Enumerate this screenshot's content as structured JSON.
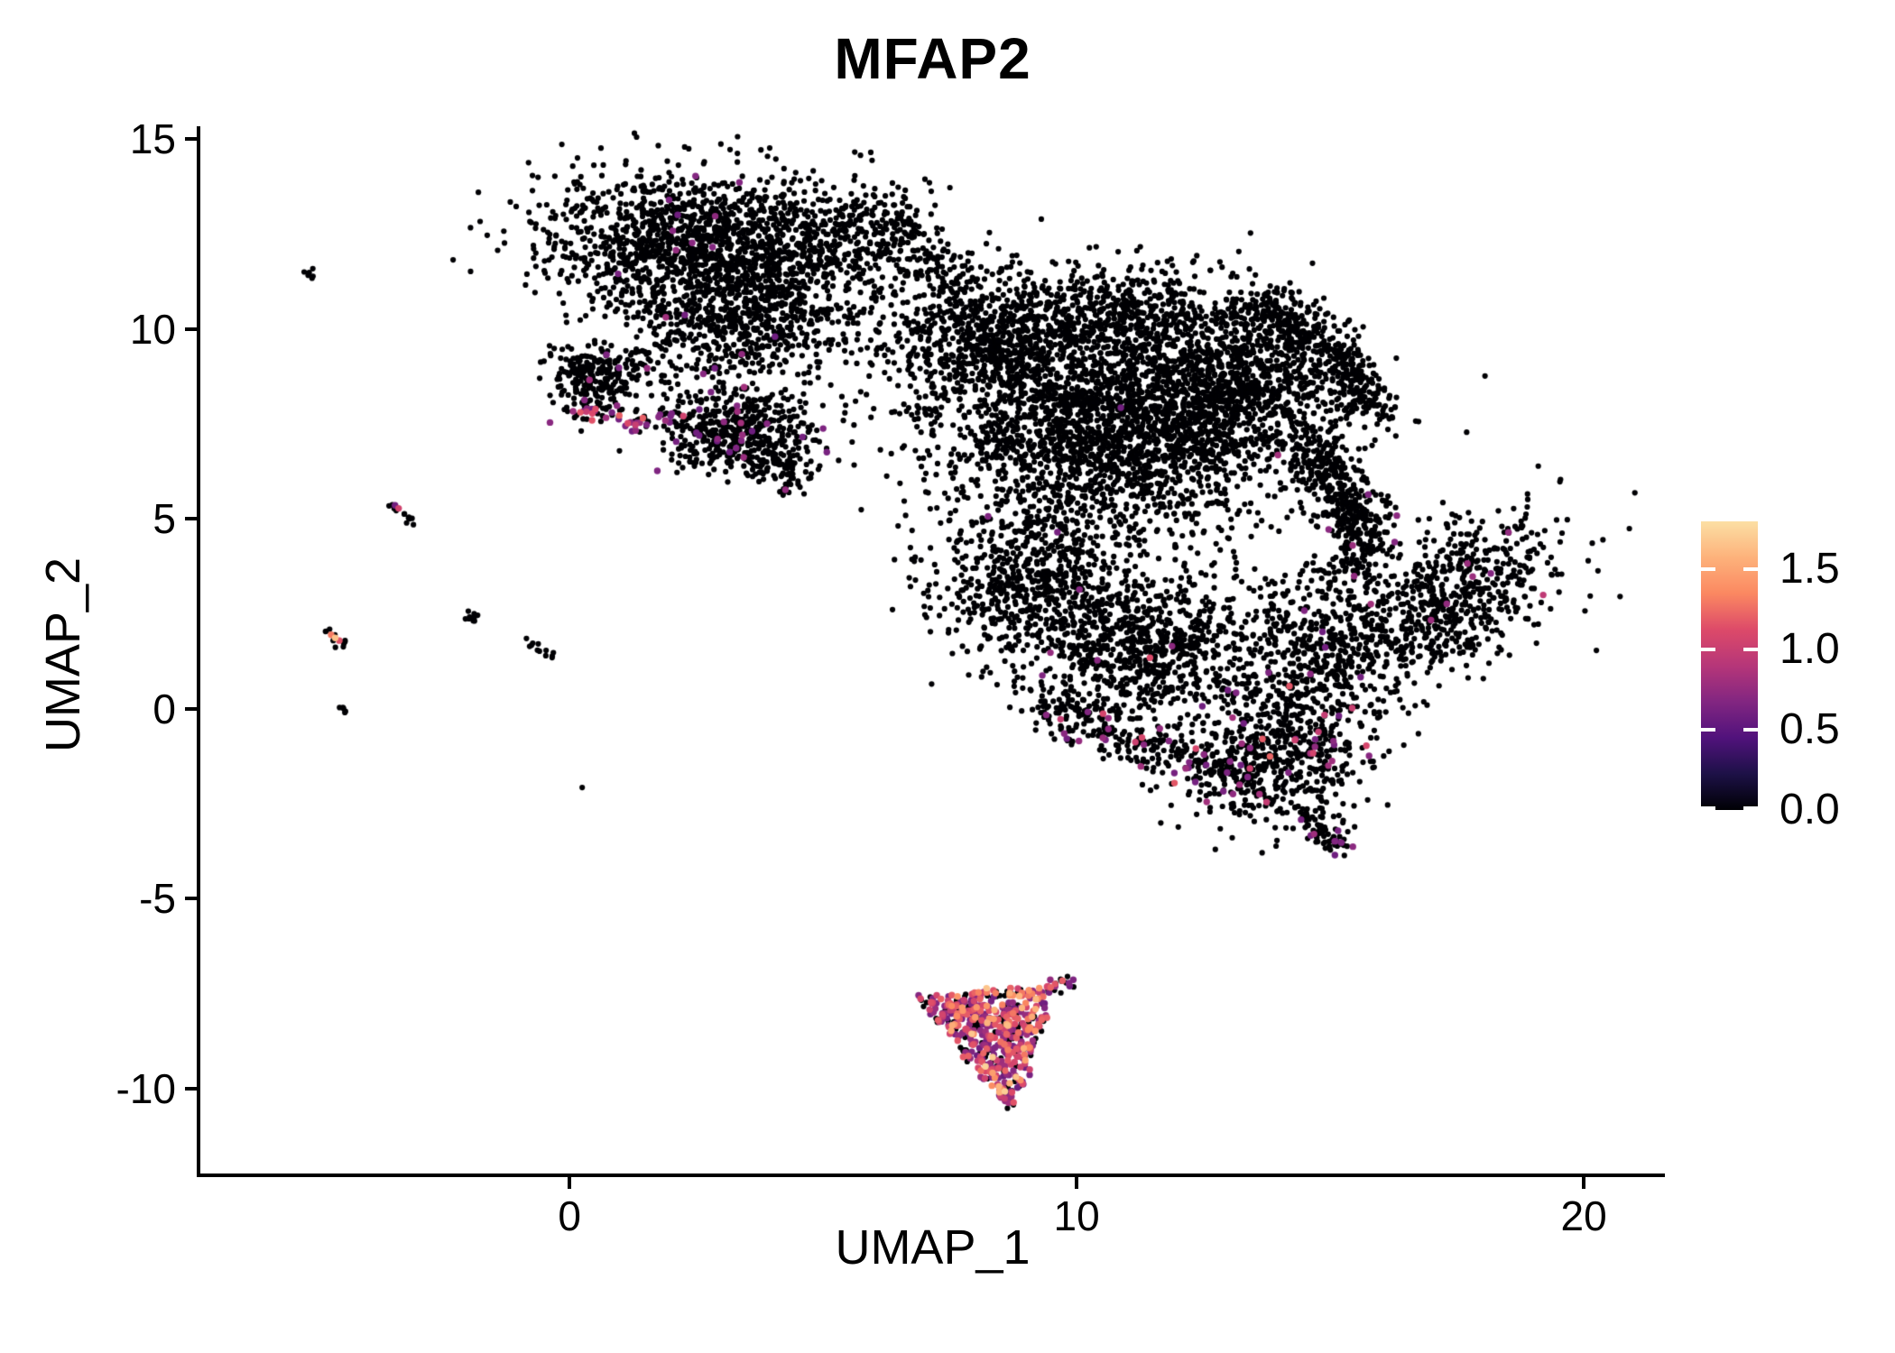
{
  "title": "MFAP2",
  "axes": {
    "x": {
      "label": "UMAP_1",
      "tick_values": [
        0,
        10,
        20
      ],
      "tick_labels": [
        "0",
        "10",
        "20"
      ],
      "range": [
        -7.28,
        21.6
      ]
    },
    "y": {
      "label": "UMAP_2",
      "tick_values": [
        15,
        10,
        5,
        0,
        -5,
        -10
      ],
      "tick_labels": [
        "15",
        "10",
        "5",
        "0",
        "-5",
        "-10"
      ],
      "range": [
        -12.28,
        15.34
      ]
    }
  },
  "colorbar": {
    "tick_labels": [
      "1.5",
      "1.0",
      "0.5",
      "0.0"
    ],
    "tick_values": [
      1.5,
      1.0,
      0.5,
      0.0
    ],
    "vmin": 0.0,
    "vmax": 1.8,
    "colormap_name": "magma",
    "colormap": [
      [
        0.0,
        "#000004"
      ],
      [
        0.225,
        "#1d1147"
      ],
      [
        0.45,
        "#51127c"
      ],
      [
        0.675,
        "#822681"
      ],
      [
        0.9,
        "#b63679"
      ],
      [
        1.125,
        "#dd4a69"
      ],
      [
        1.35,
        "#fb8861"
      ],
      [
        1.575,
        "#fdb27b"
      ],
      [
        1.8,
        "#fcdfa4"
      ]
    ]
  },
  "chart_data": {
    "type": "scatter",
    "title": "MFAP2",
    "xlabel": "UMAP_1",
    "ylabel": "UMAP_2",
    "xlim": [
      -7.28,
      21.6
    ],
    "ylim": [
      -12.28,
      15.34
    ],
    "legend_position": "right",
    "grid": false,
    "point_radius_px": 3.1,
    "colored_point_radius_px": 3.7,
    "value_levels": {
      "zero": 0.0,
      "low": 0.7,
      "mid": 1.1,
      "high": 1.35,
      "top": 1.65
    },
    "clusters": [
      {
        "id": "top-main",
        "type": "gauss",
        "c": [
          2.7,
          12.1
        ],
        "s": [
          1.55,
          1.0
        ],
        "rot": -8,
        "n": 1600,
        "mix": [
          [
            0,
            0.993
          ],
          [
            0.7,
            0.007
          ]
        ]
      },
      {
        "id": "top-right",
        "type": "gauss",
        "c": [
          5.5,
          12.7
        ],
        "s": [
          0.85,
          0.7
        ],
        "rot": 0,
        "n": 230,
        "mix": [
          [
            0,
            1
          ]
        ]
      },
      {
        "id": "top-neck",
        "type": "gauss",
        "c": [
          3.3,
          9.9
        ],
        "s": [
          1.0,
          0.7
        ],
        "rot": 0,
        "n": 400,
        "mix": [
          [
            0,
            0.99
          ],
          [
            0.7,
            0.01
          ]
        ]
      },
      {
        "id": "top-under",
        "type": "gauss",
        "c": [
          4.9,
          10.7
        ],
        "s": [
          1.0,
          0.7
        ],
        "rot": 0,
        "n": 120,
        "mix": [
          [
            0,
            1
          ]
        ]
      },
      {
        "id": "top-trail",
        "type": "streak",
        "a": [
          6.1,
          13.0
        ],
        "b": [
          7.7,
          11.3
        ],
        "w": 0.3,
        "n": 110,
        "mix": [
          [
            0,
            1
          ]
        ]
      },
      {
        "id": "left-small",
        "type": "gauss",
        "c": [
          0.55,
          8.7
        ],
        "s": [
          0.5,
          0.48
        ],
        "rot": 0,
        "n": 250,
        "mix": [
          [
            0,
            0.97
          ],
          [
            0.7,
            0.03
          ]
        ]
      },
      {
        "id": "left-small-edge",
        "type": "streak",
        "a": [
          0.2,
          7.9
        ],
        "b": [
          1.05,
          7.7
        ],
        "w": 0.12,
        "n": 20,
        "mix": [
          [
            0,
            0.35
          ],
          [
            0.7,
            0.45
          ],
          [
            1.1,
            0.2
          ]
        ]
      },
      {
        "id": "chain",
        "type": "streak",
        "a": [
          1.1,
          7.5
        ],
        "b": [
          2.2,
          7.85
        ],
        "w": 0.1,
        "n": 24,
        "mix": [
          [
            0,
            0.55
          ],
          [
            0.7,
            0.3
          ],
          [
            1.1,
            0.15
          ]
        ]
      },
      {
        "id": "mid",
        "type": "gauss",
        "c": [
          3.35,
          7.3
        ],
        "s": [
          0.8,
          0.58
        ],
        "rot": -12,
        "n": 500,
        "mix": [
          [
            0,
            0.95
          ],
          [
            0.7,
            0.05
          ]
        ]
      },
      {
        "id": "mid-tail",
        "type": "streak",
        "a": [
          4.0,
          6.6
        ],
        "b": [
          4.6,
          5.8
        ],
        "w": 0.18,
        "n": 45,
        "mix": [
          [
            0,
            0.97
          ],
          [
            0.7,
            0.03
          ]
        ]
      },
      {
        "id": "rb-upleft",
        "type": "gauss",
        "c": [
          8.1,
          9.6
        ],
        "s": [
          1.0,
          0.95
        ],
        "rot": 0,
        "n": 650,
        "mix": [
          [
            0,
            0.998
          ],
          [
            0.7,
            0.002
          ]
        ]
      },
      {
        "id": "rb-top",
        "type": "gauss",
        "c": [
          10.6,
          10.3
        ],
        "s": [
          1.5,
          0.7
        ],
        "rot": 4,
        "n": 700,
        "mix": [
          [
            0,
            1
          ]
        ]
      },
      {
        "id": "rb-core",
        "type": "gauss",
        "c": [
          10.7,
          7.3
        ],
        "s": [
          1.7,
          1.25
        ],
        "rot": 0,
        "n": 2100,
        "mix": [
          [
            0,
            0.999
          ],
          [
            0.7,
            0.001
          ]
        ]
      },
      {
        "id": "rb-right",
        "type": "gauss",
        "c": [
          13.1,
          8.6
        ],
        "s": [
          1.15,
          1.0
        ],
        "rot": -20,
        "n": 900,
        "mix": [
          [
            0,
            1
          ]
        ]
      },
      {
        "id": "rb-hook1",
        "type": "streak",
        "a": [
          13.6,
          10.8
        ],
        "b": [
          15.2,
          9.3
        ],
        "w": 0.3,
        "n": 210,
        "mix": [
          [
            0,
            1
          ]
        ]
      },
      {
        "id": "rb-hook2",
        "type": "streak",
        "a": [
          15.2,
          9.3
        ],
        "b": [
          15.9,
          7.6
        ],
        "w": 0.28,
        "n": 170,
        "mix": [
          [
            0,
            1
          ]
        ]
      },
      {
        "id": "rb-crescent1",
        "type": "streak",
        "a": [
          14.5,
          7.1
        ],
        "b": [
          15.7,
          4.7
        ],
        "w": 0.33,
        "n": 330,
        "mix": [
          [
            0,
            0.99
          ],
          [
            0.7,
            0.01
          ]
        ]
      },
      {
        "id": "rb-crescent2",
        "type": "streak",
        "a": [
          15.7,
          4.7
        ],
        "b": [
          15.4,
          3.3
        ],
        "w": 0.3,
        "n": 120,
        "mix": [
          [
            0,
            0.99
          ],
          [
            0.7,
            0.01
          ]
        ]
      },
      {
        "id": "rb-botleft",
        "type": "gauss",
        "c": [
          9.3,
          3.4
        ],
        "s": [
          1.05,
          1.1
        ],
        "rot": 0,
        "n": 700,
        "mix": [
          [
            0,
            0.997
          ],
          [
            0.7,
            0.003
          ]
        ]
      },
      {
        "id": "rb-botmid",
        "type": "gauss",
        "c": [
          11.3,
          1.5
        ],
        "s": [
          1.25,
          0.95
        ],
        "rot": 8,
        "n": 800,
        "mix": [
          [
            0,
            0.99
          ],
          [
            0.7,
            0.008
          ],
          [
            1.1,
            0.002
          ]
        ]
      },
      {
        "id": "rb-botedge",
        "type": "streak",
        "a": [
          9.4,
          0.0
        ],
        "b": [
          13.3,
          -1.9
        ],
        "w": 0.3,
        "n": 270,
        "mix": [
          [
            0,
            0.88
          ],
          [
            0.7,
            0.09
          ],
          [
            1.1,
            0.03
          ]
        ]
      },
      {
        "id": "rb-botlobe",
        "type": "gauss",
        "c": [
          13.9,
          -1.2
        ],
        "s": [
          0.85,
          0.95
        ],
        "rot": 0,
        "n": 560,
        "mix": [
          [
            0,
            0.93
          ],
          [
            0.7,
            0.055
          ],
          [
            1.1,
            0.015
          ]
        ]
      },
      {
        "id": "rb-botlobe-tip",
        "type": "streak",
        "a": [
          14.5,
          -2.7
        ],
        "b": [
          15.2,
          -3.7
        ],
        "w": 0.18,
        "n": 70,
        "mix": [
          [
            0,
            0.9
          ],
          [
            0.7,
            0.1
          ]
        ]
      },
      {
        "id": "rb-rightband",
        "type": "gauss",
        "c": [
          14.8,
          1.3
        ],
        "s": [
          0.75,
          1.15
        ],
        "rot": 12,
        "n": 430,
        "mix": [
          [
            0,
            0.99
          ],
          [
            0.7,
            0.01
          ]
        ]
      },
      {
        "id": "wing",
        "type": "gauss",
        "c": [
          17.3,
          2.9
        ],
        "s": [
          1.45,
          0.8
        ],
        "rot": 40,
        "n": 700,
        "mix": [
          [
            0,
            0.985
          ],
          [
            0.7,
            0.015
          ]
        ]
      },
      {
        "id": "bottom",
        "type": "poly",
        "pts": [
          [
            6.78,
            -7.58
          ],
          [
            9.55,
            -7.27
          ],
          [
            8.74,
            -10.59
          ]
        ],
        "n": 530,
        "mix": [
          [
            0,
            0.26
          ],
          [
            0.7,
            0.36
          ],
          [
            1.1,
            0.24
          ],
          [
            1.35,
            0.1
          ],
          [
            1.65,
            0.04
          ]
        ]
      },
      {
        "id": "bottom-tail",
        "type": "streak",
        "a": [
          9.55,
          -7.3
        ],
        "b": [
          10.0,
          -7.1
        ],
        "w": 0.1,
        "n": 14,
        "mix": [
          [
            0,
            0.5
          ],
          [
            0.7,
            0.3
          ],
          [
            1.1,
            0.2
          ]
        ]
      },
      {
        "id": "iso-dash-a",
        "type": "streak",
        "a": [
          -5.15,
          11.5
        ],
        "b": [
          -4.92,
          11.2
        ],
        "w": 0.05,
        "n": 6,
        "mix": [
          [
            0,
            1
          ]
        ]
      },
      {
        "id": "iso-streak-b",
        "type": "streak",
        "a": [
          -3.48,
          5.42
        ],
        "b": [
          -3.02,
          4.82
        ],
        "w": 0.06,
        "n": 13,
        "mix": [
          [
            0,
            1
          ]
        ]
      },
      {
        "id": "iso-streak-c",
        "type": "streak",
        "a": [
          -4.82,
          2.08
        ],
        "b": [
          -4.4,
          1.58
        ],
        "w": 0.06,
        "n": 12,
        "mix": [
          [
            0,
            1
          ]
        ]
      },
      {
        "id": "iso-blob-d",
        "type": "gauss",
        "c": [
          -2.05,
          2.42
        ],
        "s": [
          0.12,
          0.1
        ],
        "rot": 0,
        "n": 10,
        "mix": [
          [
            0,
            1
          ]
        ]
      },
      {
        "id": "iso-streak-e",
        "type": "streak",
        "a": [
          -0.88,
          1.88
        ],
        "b": [
          -0.33,
          1.35
        ],
        "w": 0.05,
        "n": 12,
        "mix": [
          [
            0,
            1
          ]
        ]
      },
      {
        "id": "iso-dash-f",
        "type": "streak",
        "a": [
          -4.52,
          0.08
        ],
        "b": [
          -4.36,
          -0.14
        ],
        "w": 0.05,
        "n": 5,
        "mix": [
          [
            0,
            1
          ]
        ]
      },
      {
        "id": "iso-dot-g",
        "type": "points",
        "pts": [
          [
            0.25,
            -2.07,
            0
          ]
        ]
      }
    ],
    "highlight_points": {
      "id": "accents",
      "type": "points",
      "pts": [
        [
          -3.44,
          5.36,
          0.6
        ],
        [
          -3.37,
          5.28,
          1.05
        ],
        [
          -4.7,
          1.95,
          1.3
        ],
        [
          -4.62,
          1.87,
          1.65
        ],
        [
          -4.54,
          1.8,
          1.15
        ],
        [
          19.2,
          3.0,
          0.95
        ],
        [
          1.15,
          7.52,
          1.1
        ],
        [
          1.3,
          7.48,
          1.0
        ],
        [
          0.45,
          7.78,
          1.1
        ]
      ]
    }
  }
}
